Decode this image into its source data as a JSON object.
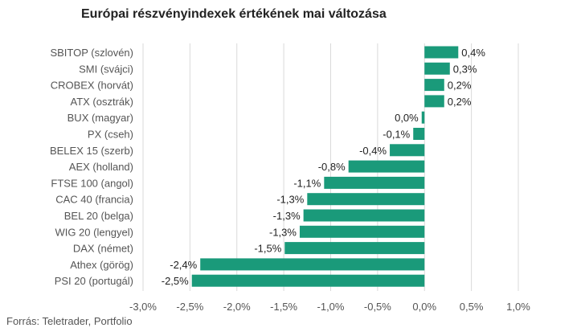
{
  "chart_data": {
    "type": "bar",
    "orientation": "horizontal",
    "title": "Európai részvényindexek értékének mai változása",
    "source": "Forrás: Teletrader, Portfolio",
    "categories": [
      "SBITOP (szlovén)",
      "SMI (svájci)",
      "CROBEX (horvát)",
      "ATX (osztrák)",
      "BUX (magyar)",
      "PX (cseh)",
      "BELEX 15 (szerb)",
      "AEX (holland)",
      "FTSE 100 (angol)",
      "CAC 40 (francia)",
      "BEL 20 (belga)",
      "WIG 20 (lengyel)",
      "DAX (német)",
      "Athex (görög)",
      "PSI 20 (portugál)"
    ],
    "values": [
      0.36,
      0.27,
      0.21,
      0.21,
      -0.03,
      -0.12,
      -0.37,
      -0.81,
      -1.07,
      -1.25,
      -1.29,
      -1.33,
      -1.49,
      -2.39,
      -2.48
    ],
    "value_labels": [
      "0,4%",
      "0,3%",
      "0,2%",
      "0,2%",
      "0,0%",
      "-0,1%",
      "-0,4%",
      "-0,8%",
      "-1,1%",
      "-1,3%",
      "-1,3%",
      "-1,3%",
      "-1,5%",
      "-2,4%",
      "-2,5%"
    ],
    "xlim": [
      -3.0,
      1.0
    ],
    "ticks": [
      -3.0,
      -2.5,
      -2.0,
      -1.5,
      -1.0,
      -0.5,
      0.0,
      0.5,
      1.0
    ],
    "tick_labels": [
      "-3,0%",
      "-2,5%",
      "-2,0%",
      "-1,5%",
      "-1,0%",
      "-0,5%",
      "0,0%",
      "0,5%",
      "1,0%"
    ],
    "grid": true,
    "legend": "none",
    "bar_color": "#1a9a7a"
  }
}
